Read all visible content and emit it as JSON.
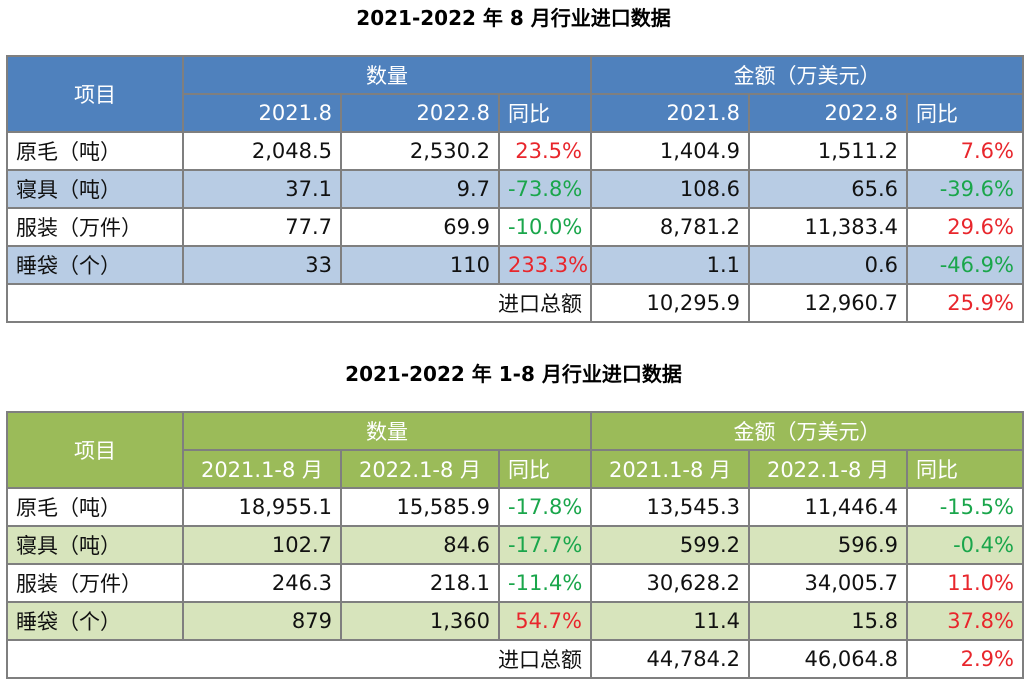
{
  "table1": {
    "title": "2021-2022 年 8 月行业进口数据",
    "item_header": "项目",
    "qty_header": "数量",
    "amt_header": "金额（万美元）",
    "cols": [
      "2021.8",
      "2022.8",
      "同比",
      "2021.8",
      "2022.8",
      "同比"
    ],
    "rows": [
      {
        "name": "原毛（吨）",
        "q1": "2,048.5",
        "q2": "2,530.2",
        "qy": "23.5%",
        "a1": "1,404.9",
        "a2": "1,511.2",
        "ay": "7.6%"
      },
      {
        "name": "寝具（吨）",
        "q1": "37.1",
        "q2": "9.7",
        "qy": "-73.8%",
        "a1": "108.6",
        "a2": "65.6",
        "ay": "-39.6%"
      },
      {
        "name": "服装（万件）",
        "q1": "77.7",
        "q2": "69.9",
        "qy": "-10.0%",
        "a1": "8,781.2",
        "a2": "11,383.4",
        "ay": "29.6%"
      },
      {
        "name": "睡袋（个）",
        "q1": "33",
        "q2": "110",
        "qy": "233.3%",
        "a1": "1.1",
        "a2": "0.6",
        "ay": "-46.9%"
      }
    ],
    "total": {
      "label": "进口总额",
      "a1": "10,295.9",
      "a2": "12,960.7",
      "ay": "25.9%"
    }
  },
  "table2": {
    "title": "2021-2022 年 1-8 月行业进口数据",
    "item_header": "项目",
    "qty_header": "数量",
    "amt_header": "金额（万美元）",
    "cols": [
      "2021.1-8 月",
      "2022.1-8 月",
      "同比",
      "2021.1-8 月",
      "2022.1-8 月",
      "同比"
    ],
    "rows": [
      {
        "name": "原毛（吨）",
        "q1": "18,955.1",
        "q2": "15,585.9",
        "qy": "-17.8%",
        "a1": "13,545.3",
        "a2": "11,446.4",
        "ay": "-15.5%"
      },
      {
        "name": "寝具（吨）",
        "q1": "102.7",
        "q2": "84.6",
        "qy": "-17.7%",
        "a1": "599.2",
        "a2": "596.9",
        "ay": "-0.4%"
      },
      {
        "name": "服装（万件）",
        "q1": "246.3",
        "q2": "218.1",
        "qy": "-11.4%",
        "a1": "30,628.2",
        "a2": "34,005.7",
        "ay": "11.0%"
      },
      {
        "name": "睡袋（个）",
        "q1": "879",
        "q2": "1,360",
        "qy": "54.7%",
        "a1": "11.4",
        "a2": "15.8",
        "ay": "37.8%"
      }
    ],
    "total": {
      "label": "进口总额",
      "a1": "44,784.2",
      "a2": "46,064.8",
      "ay": "2.9%"
    }
  },
  "colors": {
    "blue_header": "#4f81bd",
    "blue_band": "#b8cce4",
    "green_header": "#9bbb59",
    "green_band": "#d7e4bc",
    "increase": "#e8262c",
    "decrease": "#1aa64b"
  }
}
